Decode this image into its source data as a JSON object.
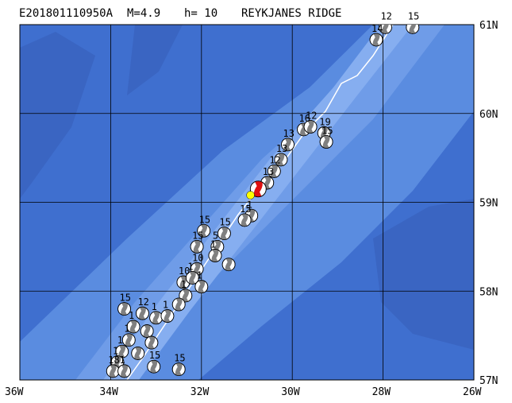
{
  "header": {
    "event_id": "E201801110950A",
    "magnitude": "M=4.9",
    "depth": "h= 10",
    "region": "REYKJANES RIDGE"
  },
  "axes": {
    "lon_ticks": [
      {
        "value": -36,
        "label": "36W"
      },
      {
        "value": -34,
        "label": "34W"
      },
      {
        "value": -32,
        "label": "32W"
      },
      {
        "value": -30,
        "label": "30W"
      },
      {
        "value": -28,
        "label": "28W"
      },
      {
        "value": -26,
        "label": "26W"
      }
    ],
    "lat_ticks": [
      {
        "value": 57,
        "label": "57N"
      },
      {
        "value": 58,
        "label": "58N"
      },
      {
        "value": 59,
        "label": "59N"
      },
      {
        "value": 60,
        "label": "60N"
      },
      {
        "value": 61,
        "label": "61N"
      }
    ],
    "lon_range": [
      -36,
      -26
    ],
    "lat_range": [
      57,
      61
    ]
  },
  "colors": {
    "deep_ocean": "#3f6fcf",
    "ridge_flank": "#5a8ce0",
    "ridge_axis": "#86aef0",
    "grid": "#000000",
    "main_event": "#e01010",
    "epicenter": "#ffff00",
    "plate_boundary": "#ffffff"
  },
  "main_event": {
    "lon": -30.75,
    "lat": 59.15,
    "label": "E201801110950A"
  },
  "epicenter": {
    "lon": -30.92,
    "lat": 59.08
  },
  "events": [
    {
      "lon": -27.95,
      "lat": 60.97,
      "label": "12"
    },
    {
      "lon": -27.35,
      "lat": 60.97,
      "label": "15"
    },
    {
      "lon": -28.15,
      "lat": 60.83,
      "label": "14"
    },
    {
      "lon": -29.75,
      "lat": 59.82,
      "label": "16"
    },
    {
      "lon": -29.6,
      "lat": 59.85,
      "label": "12"
    },
    {
      "lon": -29.3,
      "lat": 59.78,
      "label": "19"
    },
    {
      "lon": -29.25,
      "lat": 59.68,
      "label": "15"
    },
    {
      "lon": -30.1,
      "lat": 59.65,
      "label": "13"
    },
    {
      "lon": -30.25,
      "lat": 59.48,
      "label": "13"
    },
    {
      "lon": -30.4,
      "lat": 59.35,
      "label": "12"
    },
    {
      "lon": -30.55,
      "lat": 59.22,
      "label": "13"
    },
    {
      "lon": -30.9,
      "lat": 58.85,
      "label": "1"
    },
    {
      "lon": -31.05,
      "lat": 58.8,
      "label": "15"
    },
    {
      "lon": -31.95,
      "lat": 58.68,
      "label": "15"
    },
    {
      "lon": -31.5,
      "lat": 58.65,
      "label": "15"
    },
    {
      "lon": -32.1,
      "lat": 58.5,
      "label": "15"
    },
    {
      "lon": -31.65,
      "lat": 58.5,
      "label": "5"
    },
    {
      "lon": -31.7,
      "lat": 58.4,
      "label": "1"
    },
    {
      "lon": -31.4,
      "lat": 58.3,
      "label": ""
    },
    {
      "lon": -32.1,
      "lat": 58.25,
      "label": "10"
    },
    {
      "lon": -32.4,
      "lat": 58.1,
      "label": "10"
    },
    {
      "lon": -32.2,
      "lat": 58.15,
      "label": "1"
    },
    {
      "lon": -32.0,
      "lat": 58.05,
      "label": "1"
    },
    {
      "lon": -32.35,
      "lat": 57.95,
      "label": "1"
    },
    {
      "lon": -32.5,
      "lat": 57.85,
      "label": ""
    },
    {
      "lon": -33.7,
      "lat": 57.8,
      "label": "15"
    },
    {
      "lon": -33.3,
      "lat": 57.75,
      "label": "12"
    },
    {
      "lon": -33.0,
      "lat": 57.7,
      "label": "1"
    },
    {
      "lon": -32.75,
      "lat": 57.72,
      "label": "1"
    },
    {
      "lon": -33.5,
      "lat": 57.6,
      "label": "1"
    },
    {
      "lon": -33.2,
      "lat": 57.55,
      "label": ""
    },
    {
      "lon": -33.6,
      "lat": 57.45,
      "label": "1"
    },
    {
      "lon": -33.1,
      "lat": 57.42,
      "label": ""
    },
    {
      "lon": -33.75,
      "lat": 57.32,
      "label": "1"
    },
    {
      "lon": -33.4,
      "lat": 57.3,
      "label": ""
    },
    {
      "lon": -33.85,
      "lat": 57.2,
      "label": "1"
    },
    {
      "lon": -33.05,
      "lat": 57.15,
      "label": "15"
    },
    {
      "lon": -32.5,
      "lat": 57.12,
      "label": "15"
    },
    {
      "lon": -33.95,
      "lat": 57.1,
      "label": "18"
    },
    {
      "lon": -33.7,
      "lat": 57.1,
      "label": "1"
    }
  ]
}
